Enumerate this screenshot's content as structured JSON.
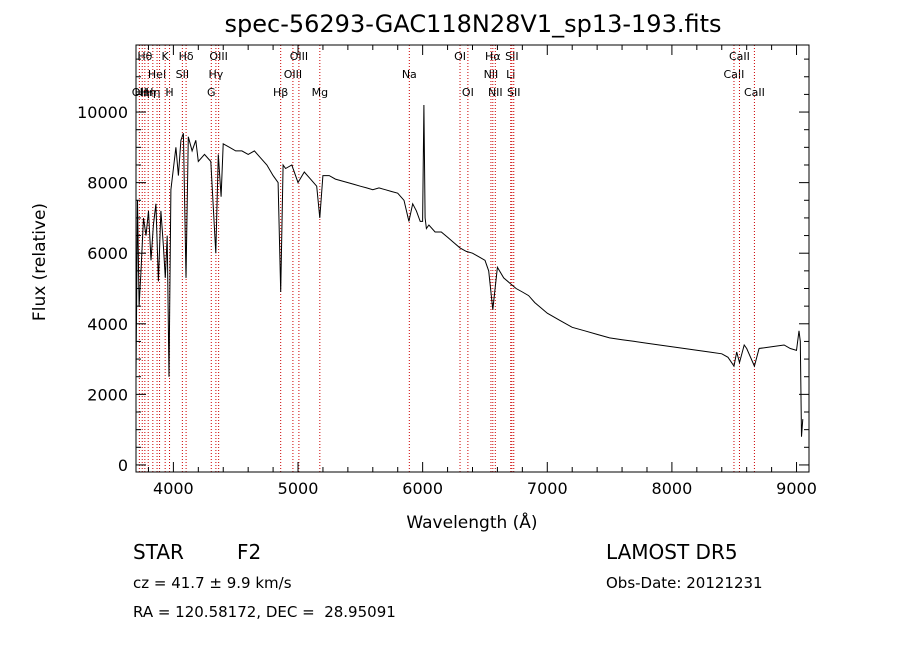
{
  "chart_data": {
    "type": "line",
    "title": "spec-56293-GAC118N28V1_sp13-193.fits",
    "xlabel": "Wavelength (Å)",
    "ylabel": "Flux (relative)",
    "xlim": [
      3700,
      9100
    ],
    "ylim": [
      -200,
      11900
    ],
    "xticks": [
      4000,
      5000,
      6000,
      7000,
      8000,
      9000
    ],
    "xtick_labels": [
      "4000",
      "5000",
      "6000",
      "7000",
      "8000",
      "9000"
    ],
    "yticks": [
      0,
      2000,
      4000,
      6000,
      8000,
      10000
    ],
    "ytick_labels": [
      "0",
      "2000",
      "4000",
      "6000",
      "8000",
      "10000"
    ],
    "grid": false,
    "series": [
      {
        "x": [
          3700,
          3712,
          3725,
          3740,
          3760,
          3780,
          3800,
          3820,
          3840,
          3860,
          3880,
          3900,
          3920,
          3935,
          3950,
          3965,
          3980,
          4000,
          4020,
          4040,
          4060,
          4080,
          4101,
          4120,
          4150,
          4180,
          4200,
          4250,
          4300,
          4320,
          4340,
          4360,
          4383,
          4400,
          4450,
          4500,
          4550,
          4600,
          4650,
          4700,
          4750,
          4800,
          4840,
          4861,
          4880,
          4900,
          4950,
          5000,
          5050,
          5100,
          5150,
          5175,
          5200,
          5250,
          5300,
          5350,
          5400,
          5450,
          5500,
          5550,
          5600,
          5650,
          5700,
          5750,
          5800,
          5850,
          5890,
          5920,
          5950,
          5980,
          6000,
          6010,
          6020,
          6030,
          6050,
          6100,
          6150,
          6200,
          6250,
          6300,
          6350,
          6400,
          6450,
          6500,
          6530,
          6563,
          6600,
          6650,
          6700,
          6750,
          6800,
          6850,
          6900,
          6950,
          7000,
          7100,
          7200,
          7300,
          7400,
          7500,
          7600,
          7700,
          7800,
          7900,
          8000,
          8100,
          8200,
          8300,
          8400,
          8450,
          8498,
          8520,
          8542,
          8580,
          8600,
          8662,
          8700,
          8800,
          8900,
          8950,
          9000,
          9020,
          9030,
          9040,
          9050
        ],
        "y": [
          2500,
          7500,
          4500,
          5500,
          7000,
          6500,
          7200,
          5800,
          6800,
          7400,
          5200,
          7200,
          6200,
          5300,
          6500,
          2500,
          7800,
          8400,
          9000,
          8200,
          9200,
          9400,
          5300,
          9300,
          8900,
          9200,
          8600,
          8800,
          8600,
          7300,
          6000,
          8800,
          7600,
          9100,
          9000,
          8900,
          8900,
          8800,
          8900,
          8700,
          8500,
          8200,
          8000,
          4900,
          8500,
          8400,
          8500,
          8000,
          8300,
          8100,
          7900,
          7000,
          8200,
          8200,
          8100,
          8050,
          8000,
          7950,
          7900,
          7850,
          7800,
          7850,
          7800,
          7750,
          7700,
          7500,
          6900,
          7400,
          7200,
          6900,
          6900,
          10200,
          7000,
          6700,
          6800,
          6600,
          6600,
          6450,
          6300,
          6150,
          6050,
          6000,
          5900,
          5800,
          5500,
          4400,
          5600,
          5300,
          5150,
          5000,
          4900,
          4800,
          4600,
          4450,
          4300,
          4100,
          3900,
          3800,
          3700,
          3600,
          3550,
          3500,
          3450,
          3400,
          3350,
          3300,
          3250,
          3200,
          3150,
          3050,
          2800,
          3200,
          2900,
          3400,
          3300,
          2800,
          3300,
          3350,
          3400,
          3300,
          3250,
          3800,
          3500,
          800,
          1300
        ]
      }
    ],
    "lines": [
      {
        "x": 3727,
        "labels": [
          "OII"
        ],
        "row": 2
      },
      {
        "x": 3750,
        "labels": [
          "Hη"
        ],
        "row": 2
      },
      {
        "x": 3771,
        "labels": [
          "Hθ"
        ],
        "row": 0
      },
      {
        "x": 3798,
        "labels": [
          "Hη"
        ],
        "row": 2
      },
      {
        "x": 3835,
        "labels": [
          "Hη"
        ],
        "row": 2
      },
      {
        "x": 3869,
        "labels": [
          "HeI"
        ],
        "row": 1
      },
      {
        "x": 3889,
        "labels": [],
        "row": 1
      },
      {
        "x": 3934,
        "labels": [
          "K"
        ],
        "row": 0
      },
      {
        "x": 3969,
        "labels": [
          "H"
        ],
        "row": 2
      },
      {
        "x": 4072,
        "labels": [
          "SII"
        ],
        "row": 1
      },
      {
        "x": 4102,
        "labels": [
          "Hδ"
        ],
        "row": 0
      },
      {
        "x": 4304,
        "labels": [
          "G"
        ],
        "row": 2
      },
      {
        "x": 4341,
        "labels": [
          "Hγ"
        ],
        "row": 1
      },
      {
        "x": 4363,
        "labels": [
          "OIII"
        ],
        "row": 0
      },
      {
        "x": 4861,
        "labels": [
          "Hβ"
        ],
        "row": 2
      },
      {
        "x": 4959,
        "labels": [
          "OIII"
        ],
        "row": 1
      },
      {
        "x": 5007,
        "labels": [
          "OIII"
        ],
        "row": 0
      },
      {
        "x": 5175,
        "labels": [
          "Mg"
        ],
        "row": 2
      },
      {
        "x": 5893,
        "labels": [
          "Na"
        ],
        "row": 1
      },
      {
        "x": 6300,
        "labels": [
          "OI"
        ],
        "row": 0
      },
      {
        "x": 6363,
        "labels": [
          "OI"
        ],
        "row": 2
      },
      {
        "x": 6548,
        "labels": [
          "NII"
        ],
        "row": 1
      },
      {
        "x": 6563,
        "labels": [
          "Hα"
        ],
        "row": 0
      },
      {
        "x": 6583,
        "labels": [
          "NII"
        ],
        "row": 2
      },
      {
        "x": 6707,
        "labels": [
          "Li"
        ],
        "row": 1
      },
      {
        "x": 6716,
        "labels": [
          "SII"
        ],
        "row": 0
      },
      {
        "x": 6731,
        "labels": [
          "SII"
        ],
        "row": 2
      },
      {
        "x": 8498,
        "labels": [
          "CaII"
        ],
        "row": 1
      },
      {
        "x": 8542,
        "labels": [
          "CaII"
        ],
        "row": 0
      },
      {
        "x": 8662,
        "labels": [
          "CaII"
        ],
        "row": 2
      }
    ]
  },
  "footer": {
    "class_label": "STAR",
    "subclass_label": "F2",
    "survey": "LAMOST DR5",
    "cz": "cz = 41.7 ± 9.9 km/s",
    "obs_date": "Obs-Date: 20121231",
    "coords": "RA = 120.58172, DEC =  28.95091"
  }
}
